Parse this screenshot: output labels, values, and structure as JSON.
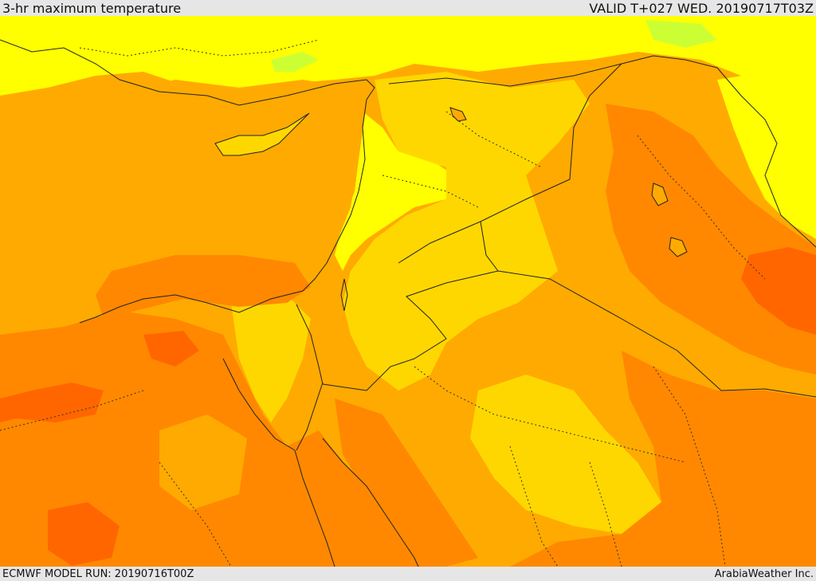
{
  "header": {
    "title": "3-hr maximum temperature",
    "valid": "VALID T+027 WED. 20190717T03Z"
  },
  "footer": {
    "model_run": "ECMWF MODEL RUN: 20190716T00Z",
    "credit": "ArabiaWeather Inc."
  },
  "colors": {
    "yellow": "#ffff00",
    "light_orange": "#ffd700",
    "orange": "#ffaa00",
    "dark_orange": "#ff8800",
    "red_orange": "#ff6600",
    "green_tint": "#ccff33",
    "border": "#222222"
  }
}
